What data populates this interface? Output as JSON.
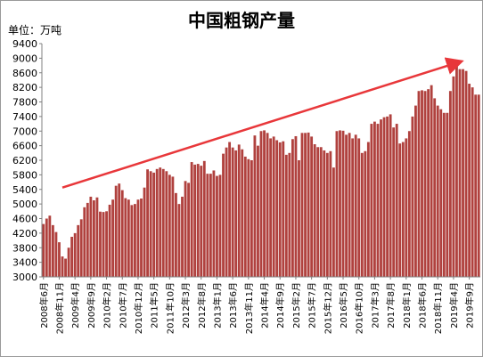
{
  "title": "中国粗钢产量",
  "unit_label": "单位：万吨",
  "colors": {
    "bar": "#b0413e",
    "bar_edge": "#ffffff",
    "arrow": "#e8373a",
    "axis": "#808080"
  },
  "chart_data": {
    "type": "bar",
    "title": "中国粗钢产量",
    "ylabel": "单位：万吨",
    "xlabel": "",
    "ylim": [
      3000,
      9400
    ],
    "yticks": [
      3000,
      3400,
      3800,
      4200,
      4600,
      5000,
      5400,
      5800,
      6200,
      6600,
      7000,
      7400,
      7800,
      8200,
      8600,
      9000,
      9400
    ],
    "grid": false,
    "legend": "none",
    "xtick_labels": [
      "2008年6月",
      "2008年11月",
      "2009年4月",
      "2009年9月",
      "2010年2月",
      "2010年7月",
      "2010年12月",
      "2011年5月",
      "2011年10月",
      "2012年3月",
      "2012年8月",
      "2013年1月",
      "2013年6月",
      "2013年11月",
      "2014年4月",
      "2014年9月",
      "2015年2月",
      "2015年7月",
      "2015年12月",
      "2016年5月",
      "2016年10月",
      "2017年3月",
      "2017年8月",
      "2018年1月",
      "2018年6月",
      "2018年11月",
      "2019年4月",
      "2019年9月"
    ],
    "categories": [
      "2008年6月",
      "2008年7月",
      "2008年8月",
      "2008年9月",
      "2008年10月",
      "2008年11月",
      "2008年12月",
      "2009年1月",
      "2009年2月",
      "2009年3月",
      "2009年4月",
      "2009年5月",
      "2009年6月",
      "2009年7月",
      "2009年8月",
      "2009年9月",
      "2009年10月",
      "2009年11月",
      "2009年12月",
      "2010年1月",
      "2010年2月",
      "2010年3月",
      "2010年4月",
      "2010年5月",
      "2010年6月",
      "2010年7月",
      "2010年8月",
      "2010年9月",
      "2010年10月",
      "2010年11月",
      "2010年12月",
      "2011年1月",
      "2011年2月",
      "2011年3月",
      "2011年4月",
      "2011年5月",
      "2011年6月",
      "2011年7月",
      "2011年8月",
      "2011年9月",
      "2011年10月",
      "2011年11月",
      "2011年12月",
      "2012年1月",
      "2012年2月",
      "2012年3月",
      "2012年4月",
      "2012年5月",
      "2012年6月",
      "2012年7月",
      "2012年8月",
      "2012年9月",
      "2012年10月",
      "2012年11月",
      "2012年12月",
      "2013年1月",
      "2013年2月",
      "2013年3月",
      "2013年4月",
      "2013年5月",
      "2013年6月",
      "2013年7月",
      "2013年8月",
      "2013年9月",
      "2013年10月",
      "2013年11月",
      "2013年12月",
      "2014年1月",
      "2014年2月",
      "2014年3月",
      "2014年4月",
      "2014年5月",
      "2014年6月",
      "2014年7月",
      "2014年8月",
      "2014年9月",
      "2014年10月",
      "2014年11月",
      "2014年12月",
      "2015年1月",
      "2015年2月",
      "2015年3月",
      "2015年4月",
      "2015年5月",
      "2015年6月",
      "2015年7月",
      "2015年8月",
      "2015年9月",
      "2015年10月",
      "2015年11月",
      "2015年12月",
      "2016年1月",
      "2016年2月",
      "2016年3月",
      "2016年4月",
      "2016年5月",
      "2016年6月",
      "2016年7月",
      "2016年8月",
      "2016年9月",
      "2016年10月",
      "2016年11月",
      "2016年12月",
      "2017年1月",
      "2017年2月",
      "2017年3月",
      "2017年4月",
      "2017年5月",
      "2017年6月",
      "2017年7月",
      "2017年8月",
      "2017年9月",
      "2017年10月",
      "2017年11月",
      "2017年12月",
      "2018年1月",
      "2018年2月",
      "2018年3月",
      "2018年4月",
      "2018年5月",
      "2018年6月",
      "2018年7月",
      "2018年8月",
      "2018年9月",
      "2018年10月",
      "2018年11月",
      "2018年12月",
      "2019年1月",
      "2019年2月",
      "2019年3月",
      "2019年4月",
      "2019年5月",
      "2019年6月",
      "2019年7月",
      "2019年8月",
      "2019年9月",
      "2019年10月",
      "2019年11月",
      "2019年12月"
    ],
    "values": [
      4450,
      4600,
      4680,
      4420,
      4230,
      3950,
      3560,
      3500,
      3800,
      4100,
      4200,
      4420,
      4580,
      4910,
      5030,
      5200,
      5100,
      5180,
      4790,
      4780,
      4800,
      4980,
      5120,
      5500,
      5560,
      5380,
      5160,
      5120,
      4970,
      5000,
      5120,
      5150,
      5450,
      5950,
      5900,
      5860,
      5960,
      6000,
      5960,
      5900,
      5800,
      5750,
      5300,
      5000,
      5200,
      5630,
      5580,
      6150,
      6080,
      6100,
      6050,
      6180,
      5830,
      5830,
      5920,
      5770,
      5800,
      6380,
      6550,
      6700,
      6550,
      6470,
      6630,
      6500,
      6300,
      6230,
      6200,
      6880,
      6600,
      7000,
      7020,
      6950,
      6800,
      6850,
      6750,
      6690,
      6720,
      6350,
      6400,
      6780,
      6860,
      6200,
      6950,
      6950,
      6960,
      6850,
      6640,
      6560,
      6560,
      6470,
      6400,
      6450,
      6000,
      7000,
      7020,
      7010,
      6900,
      6950,
      6800,
      6900,
      6800,
      6400,
      6450,
      6700,
      7200,
      7260,
      7200,
      7320,
      7380,
      7400,
      7460,
      7100,
      7200,
      6660,
      6700,
      6800,
      7000,
      7400,
      7700,
      8100,
      8120,
      8100,
      8150,
      8260,
      7900,
      7700,
      7600,
      7500,
      7500,
      8100,
      8500,
      8900,
      8700,
      8700,
      8650,
      8300,
      8200,
      8000,
      8000
    ],
    "annotations": [
      {
        "type": "trend-arrow",
        "from": {
          "category": "2008年12月",
          "value": 5450
        },
        "to": {
          "category": "2019年6月",
          "value": 8900
        }
      }
    ]
  }
}
